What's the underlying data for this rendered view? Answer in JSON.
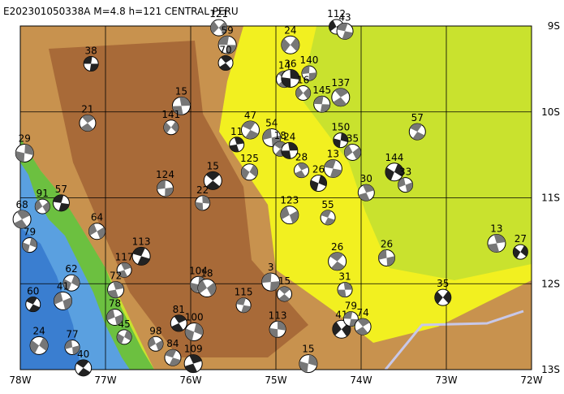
{
  "map": {
    "title": "E202301050338A M=4.8 h=121 CENTRAL PERU",
    "lonlim": [
      -78,
      -72
    ],
    "latlim": [
      -13,
      -9
    ],
    "xticks": [
      {
        "value": -78,
        "label": "78W"
      },
      {
        "value": -77,
        "label": "77W"
      },
      {
        "value": -76,
        "label": "76W"
      },
      {
        "value": -75,
        "label": "75W"
      },
      {
        "value": -74,
        "label": "74W"
      },
      {
        "value": -73,
        "label": "73W"
      },
      {
        "value": -72,
        "label": "72W"
      }
    ],
    "yticks": [
      {
        "value": -9,
        "label": "9S"
      },
      {
        "value": -10,
        "label": "10S"
      },
      {
        "value": -11,
        "label": "11S"
      },
      {
        "value": -12,
        "label": "12S"
      },
      {
        "value": -13,
        "label": "13S"
      }
    ],
    "events": [
      {
        "lon": -77.17,
        "lat": -9.44,
        "depth": 38
      },
      {
        "lon": -77.21,
        "lat": -10.13,
        "depth": 21
      },
      {
        "lon": -77.95,
        "lat": -10.48,
        "depth": 29
      },
      {
        "lon": -77.74,
        "lat": -11.1,
        "depth": 91
      },
      {
        "lon": -77.52,
        "lat": -11.06,
        "depth": 57
      },
      {
        "lon": -77.98,
        "lat": -11.25,
        "depth": 68
      },
      {
        "lon": -77.89,
        "lat": -11.55,
        "depth": 79
      },
      {
        "lon": -77.1,
        "lat": -11.39,
        "depth": 64
      },
      {
        "lon": -76.58,
        "lat": -11.68,
        "depth": 113
      },
      {
        "lon": -76.78,
        "lat": -11.84,
        "depth": 117
      },
      {
        "lon": -77.4,
        "lat": -11.99,
        "depth": 62
      },
      {
        "lon": -77.5,
        "lat": -12.2,
        "depth": 41
      },
      {
        "lon": -77.85,
        "lat": -12.24,
        "depth": 60
      },
      {
        "lon": -76.88,
        "lat": -12.07,
        "depth": 72
      },
      {
        "lon": -77.78,
        "lat": -12.72,
        "depth": 24
      },
      {
        "lon": -77.39,
        "lat": -12.74,
        "depth": 77
      },
      {
        "lon": -77.26,
        "lat": -12.98,
        "depth": 40
      },
      {
        "lon": -76.11,
        "lat": -9.93,
        "depth": 15
      },
      {
        "lon": -76.23,
        "lat": -10.18,
        "depth": 141
      },
      {
        "lon": -76.3,
        "lat": -10.89,
        "depth": 124
      },
      {
        "lon": -75.74,
        "lat": -10.8,
        "depth": 15
      },
      {
        "lon": -75.86,
        "lat": -11.06,
        "depth": 22
      },
      {
        "lon": -75.67,
        "lat": -9.02,
        "depth": 121
      },
      {
        "lon": -75.57,
        "lat": -9.22,
        "depth": 59
      },
      {
        "lon": -75.59,
        "lat": -9.43,
        "depth": 70
      },
      {
        "lon": -75.91,
        "lat": -12.01,
        "depth": 104
      },
      {
        "lon": -75.81,
        "lat": -12.05,
        "depth": 18
      },
      {
        "lon": -75.38,
        "lat": -12.25,
        "depth": 115
      },
      {
        "lon": -76.14,
        "lat": -12.46,
        "depth": 81
      },
      {
        "lon": -75.96,
        "lat": -12.56,
        "depth": 100
      },
      {
        "lon": -76.41,
        "lat": -12.7,
        "depth": 98
      },
      {
        "lon": -76.21,
        "lat": -12.86,
        "depth": 84
      },
      {
        "lon": -75.97,
        "lat": -12.93,
        "depth": 109
      },
      {
        "lon": -76.78,
        "lat": -12.62,
        "depth": 45
      },
      {
        "lon": -76.89,
        "lat": -12.39,
        "depth": 78
      },
      {
        "lon": -75.3,
        "lat": -10.21,
        "depth": 47
      },
      {
        "lon": -75.46,
        "lat": -10.38,
        "depth": 11
      },
      {
        "lon": -75.31,
        "lat": -10.7,
        "depth": 125
      },
      {
        "lon": -75.05,
        "lat": -10.3,
        "depth": 54
      },
      {
        "lon": -74.95,
        "lat": -10.43,
        "depth": 18
      },
      {
        "lon": -74.84,
        "lat": -10.45,
        "depth": 24
      },
      {
        "lon": -74.83,
        "lat": -9.22,
        "depth": 24
      },
      {
        "lon": -74.61,
        "lat": -9.55,
        "depth": 140
      },
      {
        "lon": -74.9,
        "lat": -9.62,
        "depth": 14
      },
      {
        "lon": -74.83,
        "lat": -9.61,
        "depth": 36
      },
      {
        "lon": -74.68,
        "lat": -9.78,
        "depth": 16
      },
      {
        "lon": -74.46,
        "lat": -9.91,
        "depth": 145
      },
      {
        "lon": -74.24,
        "lat": -9.83,
        "depth": 137
      },
      {
        "lon": -74.24,
        "lat": -10.33,
        "depth": 150
      },
      {
        "lon": -74.1,
        "lat": -10.47,
        "depth": 35
      },
      {
        "lon": -74.33,
        "lat": -10.66,
        "depth": 13
      },
      {
        "lon": -74.7,
        "lat": -10.68,
        "depth": 28
      },
      {
        "lon": -74.5,
        "lat": -10.83,
        "depth": 26
      },
      {
        "lon": -74.84,
        "lat": -11.2,
        "depth": 123
      },
      {
        "lon": -74.39,
        "lat": -11.23,
        "depth": 55
      },
      {
        "lon": -73.94,
        "lat": -10.94,
        "depth": 30
      },
      {
        "lon": -73.61,
        "lat": -10.7,
        "depth": 144
      },
      {
        "lon": -73.48,
        "lat": -10.85,
        "depth": 33
      },
      {
        "lon": -73.34,
        "lat": -10.23,
        "depth": 57
      },
      {
        "lon": -72.41,
        "lat": -11.53,
        "depth": 13
      },
      {
        "lon": -72.13,
        "lat": -11.63,
        "depth": 27
      },
      {
        "lon": -73.7,
        "lat": -11.7,
        "depth": 26
      },
      {
        "lon": -74.28,
        "lat": -11.74,
        "depth": 26
      },
      {
        "lon": -74.19,
        "lat": -12.07,
        "depth": 31
      },
      {
        "lon": -73.04,
        "lat": -12.16,
        "depth": 35
      },
      {
        "lon": -75.06,
        "lat": -11.98,
        "depth": 3
      },
      {
        "lon": -74.9,
        "lat": -12.12,
        "depth": 15
      },
      {
        "lon": -74.98,
        "lat": -12.53,
        "depth": 113
      },
      {
        "lon": -74.23,
        "lat": -12.53,
        "depth": 41
      },
      {
        "lon": -74.12,
        "lat": -12.41,
        "depth": 79
      },
      {
        "lon": -73.98,
        "lat": -12.5,
        "depth": 74
      },
      {
        "lon": -74.62,
        "lat": -12.93,
        "depth": 15
      },
      {
        "lon": -74.29,
        "lat": -9.01,
        "depth": 112
      },
      {
        "lon": -74.19,
        "lat": -9.06,
        "depth": 43
      }
    ]
  }
}
